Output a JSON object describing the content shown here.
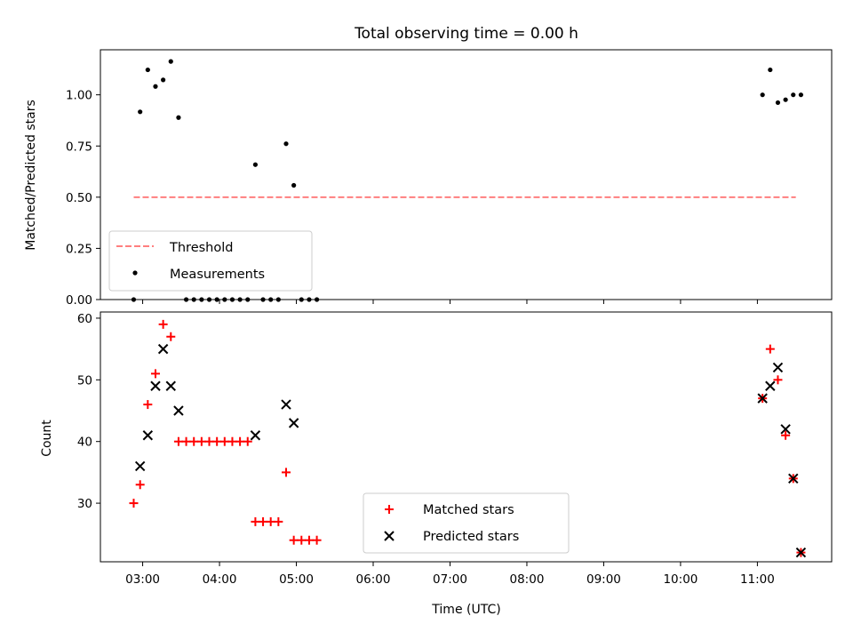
{
  "chart_data": [
    {
      "type": "scatter",
      "title": "Total observing time = 0.00 h",
      "xlabel": "",
      "ylabel": "Matched/Predicted stars",
      "ylim": [
        0,
        1.22
      ],
      "yticks": [
        "0.00",
        "0.25",
        "0.50",
        "0.75",
        "1.00"
      ],
      "legend_position": "lower-left",
      "series": [
        {
          "name": "Threshold",
          "kind": "dashed-line",
          "color": "#ff7f7f",
          "points": [
            [
              "02:53",
              0.5
            ],
            [
              "11:30",
              0.5
            ]
          ]
        },
        {
          "name": "Measurements",
          "kind": "dots",
          "color": "#000000",
          "points": [
            [
              "02:53",
              0.0
            ],
            [
              "02:58",
              0.917
            ],
            [
              "03:04",
              1.122
            ],
            [
              "03:10",
              1.041
            ],
            [
              "03:16",
              1.073
            ],
            [
              "03:22",
              1.163
            ],
            [
              "03:28",
              0.889
            ],
            [
              "03:34",
              0.0
            ],
            [
              "03:40",
              0.0
            ],
            [
              "03:46",
              0.0
            ],
            [
              "03:52",
              0.0
            ],
            [
              "03:58",
              0.0
            ],
            [
              "04:04",
              0.0
            ],
            [
              "04:10",
              0.0
            ],
            [
              "04:16",
              0.0
            ],
            [
              "04:22",
              0.0
            ],
            [
              "04:28",
              0.659
            ],
            [
              "04:34",
              0.0
            ],
            [
              "04:40",
              0.0
            ],
            [
              "04:46",
              0.0
            ],
            [
              "04:52",
              0.761
            ],
            [
              "04:58",
              0.558
            ],
            [
              "05:04",
              0.0
            ],
            [
              "05:10",
              0.0
            ],
            [
              "05:16",
              0.0
            ],
            [
              "11:04",
              1.0
            ],
            [
              "11:10",
              1.122
            ],
            [
              "11:16",
              0.962
            ],
            [
              "11:22",
              0.976
            ],
            [
              "11:28",
              1.0
            ],
            [
              "11:34",
              1.0
            ]
          ]
        }
      ]
    },
    {
      "type": "scatter",
      "title": "",
      "xlabel": "Time (UTC)",
      "ylabel": "Count",
      "ylim": [
        20.5,
        61
      ],
      "yticks": [
        "30",
        "40",
        "50",
        "60"
      ],
      "xticks": [
        "03:00",
        "04:00",
        "05:00",
        "06:00",
        "07:00",
        "08:00",
        "09:00",
        "10:00",
        "11:00"
      ],
      "xlim": [
        "02:27",
        "11:58"
      ],
      "legend_position": "lower-center",
      "series": [
        {
          "name": "Matched stars",
          "marker": "plus",
          "color": "#ff0000",
          "points": [
            [
              "02:53",
              30
            ],
            [
              "02:58",
              33
            ],
            [
              "03:04",
              46
            ],
            [
              "03:10",
              51
            ],
            [
              "03:16",
              59
            ],
            [
              "03:22",
              57
            ],
            [
              "03:28",
              40
            ],
            [
              "03:34",
              40
            ],
            [
              "03:40",
              40
            ],
            [
              "03:46",
              40
            ],
            [
              "03:52",
              40
            ],
            [
              "03:58",
              40
            ],
            [
              "04:04",
              40
            ],
            [
              "04:10",
              40
            ],
            [
              "04:16",
              40
            ],
            [
              "04:22",
              40
            ],
            [
              "04:28",
              27
            ],
            [
              "04:34",
              27
            ],
            [
              "04:40",
              27
            ],
            [
              "04:46",
              27
            ],
            [
              "04:52",
              35
            ],
            [
              "04:58",
              24
            ],
            [
              "05:04",
              24
            ],
            [
              "05:10",
              24
            ],
            [
              "05:16",
              24
            ],
            [
              "11:04",
              47
            ],
            [
              "11:10",
              55
            ],
            [
              "11:16",
              50
            ],
            [
              "11:22",
              41
            ],
            [
              "11:28",
              34
            ],
            [
              "11:34",
              22
            ]
          ]
        },
        {
          "name": "Predicted stars",
          "marker": "x",
          "color": "#000000",
          "points": [
            [
              "02:58",
              36
            ],
            [
              "03:04",
              41
            ],
            [
              "03:10",
              49
            ],
            [
              "03:16",
              55
            ],
            [
              "03:22",
              49
            ],
            [
              "03:28",
              45
            ],
            [
              "04:28",
              41
            ],
            [
              "04:52",
              46
            ],
            [
              "04:58",
              43
            ],
            [
              "11:04",
              47
            ],
            [
              "11:10",
              49
            ],
            [
              "11:16",
              52
            ],
            [
              "11:22",
              42
            ],
            [
              "11:28",
              34
            ],
            [
              "11:34",
              22
            ]
          ]
        }
      ]
    }
  ]
}
